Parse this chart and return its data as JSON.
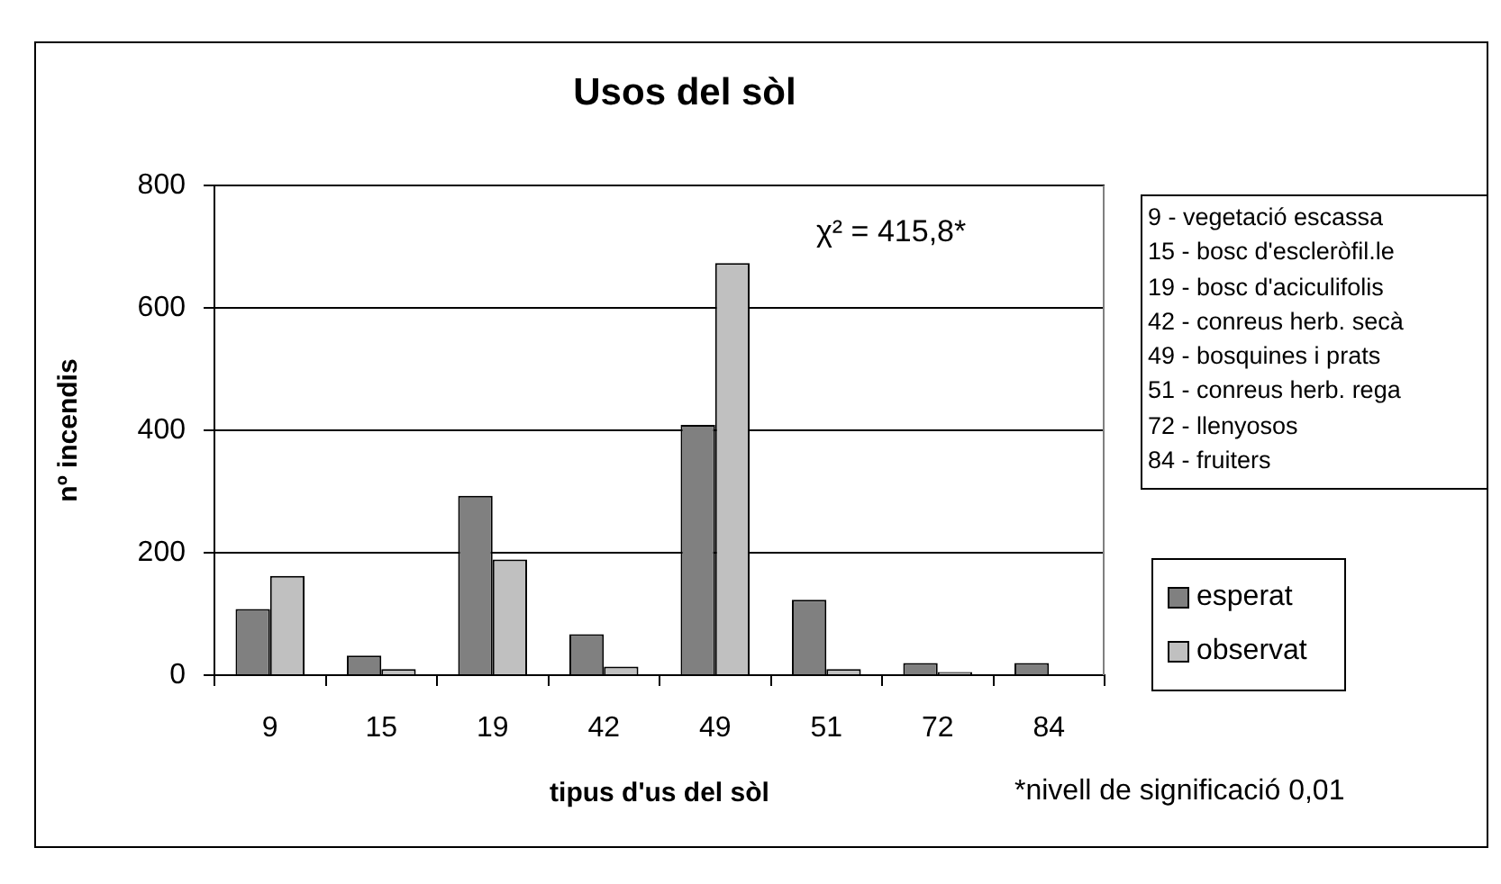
{
  "chart_data": {
    "type": "bar",
    "title": "Usos del sòl",
    "xlabel": "tipus d'us del sòl",
    "ylabel": "nº incendis",
    "categories": [
      "9",
      "15",
      "19",
      "42",
      "49",
      "51",
      "72",
      "84"
    ],
    "series": [
      {
        "name": "esperat",
        "color": "#808080",
        "values": [
          108,
          32,
          293,
          67,
          409,
          123,
          20,
          20
        ]
      },
      {
        "name": "observat",
        "color": "#c0c0c0",
        "values": [
          162,
          10,
          189,
          14,
          673,
          10,
          5,
          0
        ]
      }
    ],
    "ylim": [
      0,
      800
    ],
    "yticks": [
      0,
      200,
      400,
      600,
      800
    ],
    "grid": "y",
    "legend": "right",
    "annotations": [
      "χ² = 415,8*",
      "*nivell de significació 0,01",
      "9 - vegetació escassa",
      "15 - bosc d'escleròfil.le",
      "19 - bosc d'aciculifolis",
      "42 - conreus herb. secà",
      "49 - bosquines i prats",
      "51 - conreus herb. rega",
      "72 - llenyosos",
      "84 - fruiters"
    ]
  }
}
